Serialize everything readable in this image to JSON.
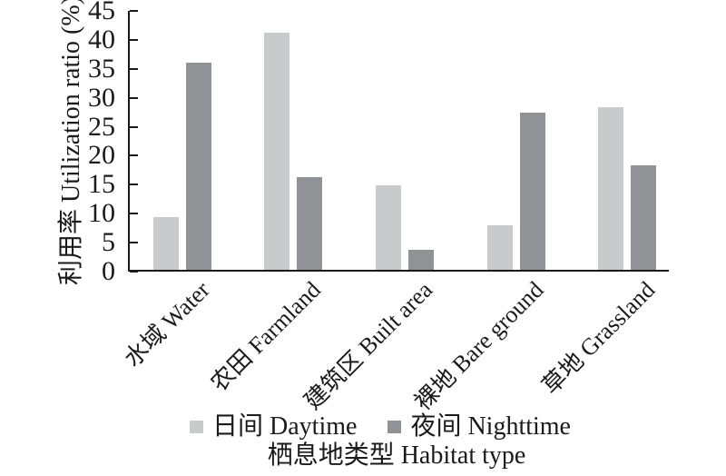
{
  "figure": {
    "background": "#ffffff",
    "axis_color": "#1a1a1a",
    "text_color": "#1a1a1a"
  },
  "chart_data": {
    "type": "bar",
    "title": "",
    "xlabel": "栖息地类型 Habitat type",
    "ylabel": "利用率 Utilization ratio (%)",
    "categories": [
      "水域 Water",
      "农田 Farmland",
      "建筑区 Built area",
      "裸地 Bare ground",
      "草地 Grassland"
    ],
    "series": [
      {
        "name": "日间 Daytime",
        "color": "#c9cacc",
        "values": [
          9.1,
          41.0,
          14.6,
          7.7,
          28.0
        ]
      },
      {
        "name": "夜间 Nighttime",
        "color": "#909296",
        "values": [
          35.8,
          16.0,
          3.4,
          27.1,
          18.0
        ]
      }
    ],
    "ylim": [
      0,
      45
    ],
    "ytick_step": 5,
    "yticks": [
      0,
      5,
      10,
      15,
      20,
      25,
      30,
      35,
      40,
      45
    ],
    "grid": false,
    "legend_position": "bottom"
  }
}
